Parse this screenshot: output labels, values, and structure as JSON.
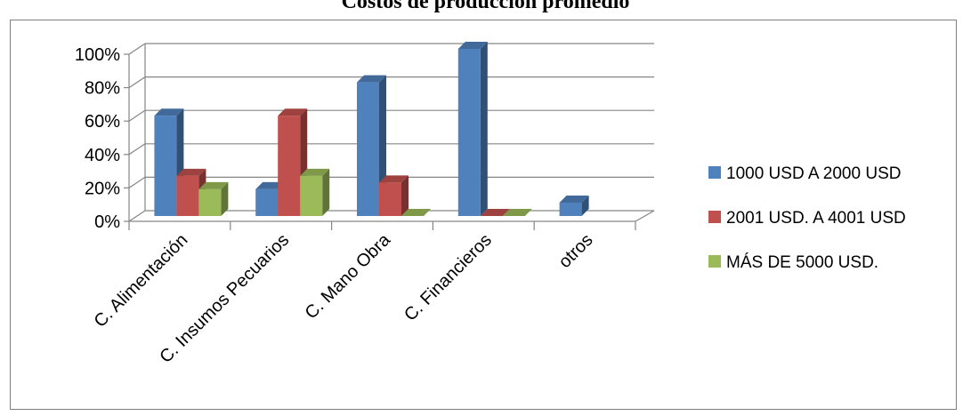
{
  "chart_data": {
    "type": "bar",
    "title": "Costos de producción promedio",
    "categories": [
      "C. Alimentación",
      "C. Insumos Pecuarios",
      "C. Mano Obra",
      "C. Financieros",
      "otros"
    ],
    "series": [
      {
        "name": "1000 USD A 2000 USD",
        "color": "#4f81bd",
        "values": [
          60,
          16,
          80,
          100,
          8
        ]
      },
      {
        "name": "2001 USD. A 4001 USD",
        "color": "#c0504d",
        "values": [
          24,
          60,
          20,
          0,
          null
        ]
      },
      {
        "name": "MÁS DE 5000 USD.",
        "color": "#9bbb59",
        "values": [
          16,
          24,
          0,
          0,
          null
        ]
      }
    ],
    "y_ticks": [
      "0%",
      "20%",
      "40%",
      "60%",
      "80%",
      "100%"
    ],
    "ylim": [
      0,
      100
    ],
    "grid": true,
    "legend_position": "right",
    "three_d": true
  }
}
